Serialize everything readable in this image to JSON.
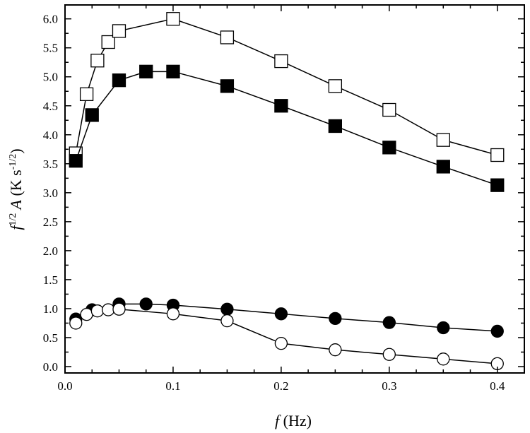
{
  "chart_data": {
    "type": "line",
    "title": "",
    "xlabel": {
      "var": "f",
      "unit": " (Hz)"
    },
    "ylabel": {
      "var1": "f",
      "sup1": "1/2",
      "var2": " A",
      "unit_pre": " (K s",
      "sup2": "-1/2",
      "unit_post": ")"
    },
    "xlim": [
      0.0,
      0.425
    ],
    "ylim": [
      -0.11,
      6.24
    ],
    "xticks": [
      "0.0",
      "0.1",
      "0.2",
      "0.3",
      "0.4"
    ],
    "xtick_values": [
      0.0,
      0.1,
      0.2,
      0.3,
      0.4
    ],
    "yticks": [
      "0.0",
      "0.5",
      "1.0",
      "1.5",
      "2.0",
      "2.5",
      "3.0",
      "3.5",
      "4.0",
      "4.5",
      "5.0",
      "5.5",
      "6.0"
    ],
    "ytick_values": [
      0,
      0.5,
      1,
      1.5,
      2,
      2.5,
      3,
      3.5,
      4,
      4.5,
      5,
      5.5,
      6
    ],
    "legend": "none",
    "grid": false,
    "series": [
      {
        "name": "open-squares",
        "marker": "square",
        "filled": false,
        "x": [
          0.01,
          0.02,
          0.03,
          0.04,
          0.05,
          0.1,
          0.15,
          0.2,
          0.25,
          0.3,
          0.35,
          0.4
        ],
        "y": [
          3.68,
          4.7,
          5.28,
          5.6,
          5.79,
          6.0,
          5.68,
          5.27,
          4.84,
          4.43,
          3.91,
          3.65
        ]
      },
      {
        "name": "filled-squares",
        "marker": "square",
        "filled": true,
        "x": [
          0.01,
          0.025,
          0.05,
          0.075,
          0.1,
          0.15,
          0.2,
          0.25,
          0.3,
          0.35,
          0.4
        ],
        "y": [
          3.55,
          4.34,
          4.94,
          5.09,
          5.09,
          4.84,
          4.5,
          4.15,
          3.78,
          3.45,
          3.13
        ]
      },
      {
        "name": "filled-circles",
        "marker": "circle",
        "filled": true,
        "x": [
          0.01,
          0.025,
          0.05,
          0.075,
          0.1,
          0.15,
          0.2,
          0.25,
          0.3,
          0.35,
          0.4
        ],
        "y": [
          0.82,
          0.98,
          1.08,
          1.08,
          1.06,
          0.99,
          0.91,
          0.83,
          0.76,
          0.67,
          0.61
        ]
      },
      {
        "name": "open-circles",
        "marker": "circle",
        "filled": false,
        "x": [
          0.01,
          0.02,
          0.03,
          0.04,
          0.05,
          0.1,
          0.15,
          0.2,
          0.25,
          0.3,
          0.35,
          0.4
        ],
        "y": [
          0.75,
          0.9,
          0.96,
          0.98,
          0.99,
          0.91,
          0.79,
          0.4,
          0.29,
          0.21,
          0.13,
          0.05
        ]
      }
    ]
  }
}
